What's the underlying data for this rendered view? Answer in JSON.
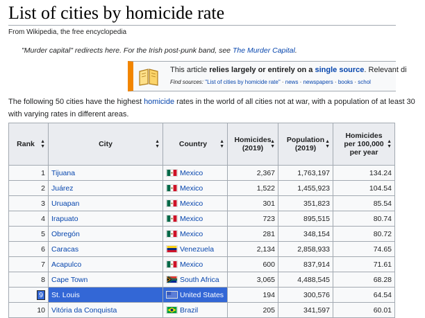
{
  "page": {
    "title": "List of cities by homicide rate",
    "from": "From Wikipedia, the free encyclopedia",
    "hatnote_prefix": "\"Murder capital\" redirects here. For the Irish post-punk band, see ",
    "hatnote_link": "The Murder Capital",
    "hatnote_suffix": "."
  },
  "ambox": {
    "text_a": "This article ",
    "text_b": "relies largely or entirely on a ",
    "text_link": "single source",
    "text_c": ". Relevant di",
    "find_label": "Find sources:",
    "find_query": "\"List of cities by homicide rate\"",
    "find_links": [
      "news",
      "newspapers",
      "books",
      "schol"
    ]
  },
  "intro": {
    "part1": "The following 50 cities have the highest ",
    "link": "homicide",
    "part2": " rates in the world of all cities not at war, with a population of at least 30",
    "line2": "with varying rates in different areas."
  },
  "table": {
    "headers": {
      "rank": "Rank",
      "city": "City",
      "country": "Country",
      "homicides": [
        "Homicides",
        "(2019)"
      ],
      "population": [
        "Population",
        "(2019)"
      ],
      "rate": [
        "Homicides",
        "per 100,000",
        "per year"
      ]
    },
    "rows": [
      {
        "rank": "1",
        "city": "Tijuana",
        "country": "Mexico",
        "flag": "mexico",
        "homicides": "2,367",
        "population": "1,763,197",
        "rate": "134.24"
      },
      {
        "rank": "2",
        "city": "Juárez",
        "country": "Mexico",
        "flag": "mexico",
        "homicides": "1,522",
        "population": "1,455,923",
        "rate": "104.54"
      },
      {
        "rank": "3",
        "city": "Uruapan",
        "country": "Mexico",
        "flag": "mexico",
        "homicides": "301",
        "population": "351,823",
        "rate": "85.54"
      },
      {
        "rank": "4",
        "city": "Irapuato",
        "country": "Mexico",
        "flag": "mexico",
        "homicides": "723",
        "population": "895,515",
        "rate": "80.74"
      },
      {
        "rank": "5",
        "city": "Obregón",
        "country": "Mexico",
        "flag": "mexico",
        "homicides": "281",
        "population": "348,154",
        "rate": "80.72"
      },
      {
        "rank": "6",
        "city": "Caracas",
        "country": "Venezuela",
        "flag": "venezuela",
        "homicides": "2,134",
        "population": "2,858,933",
        "rate": "74.65"
      },
      {
        "rank": "7",
        "city": "Acapulco",
        "country": "Mexico",
        "flag": "mexico",
        "homicides": "600",
        "population": "837,914",
        "rate": "71.61"
      },
      {
        "rank": "8",
        "city": "Cape Town",
        "country": "South Africa",
        "flag": "south-africa",
        "homicides": "3,065",
        "population": "4,488,545",
        "rate": "68.28"
      },
      {
        "rank": "9",
        "city": "St. Louis",
        "country": "United States",
        "flag": "united-states",
        "homicides": "194",
        "population": "300,576",
        "rate": "64.54",
        "selected": true
      },
      {
        "rank": "10",
        "city": "Vitória da Conquista",
        "country": "Brazil",
        "flag": "brazil",
        "homicides": "205",
        "population": "341,597",
        "rate": "60.01"
      }
    ]
  },
  "colors": {
    "link": "#0645ad",
    "selection": "#3367d6",
    "ambox_border": "#f28500"
  }
}
